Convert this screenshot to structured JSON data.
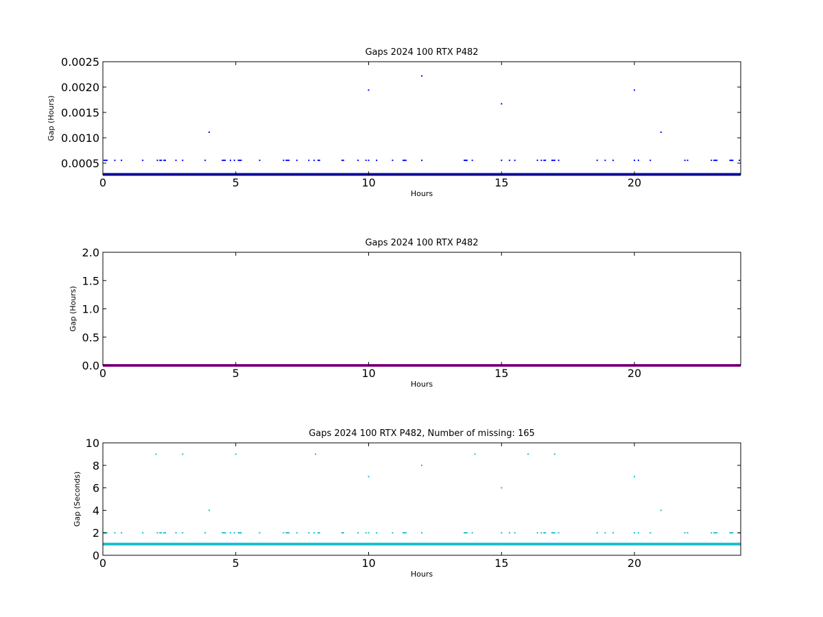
{
  "chart_data": [
    {
      "type": "scatter",
      "title": "Gaps 2024 100 RTX  P482",
      "xlabel": "Hours",
      "ylabel": "Gap (Hours)",
      "xlim": [
        0,
        24
      ],
      "ylim": [
        0.00027,
        0.0025
      ],
      "xticks": [
        0,
        5,
        10,
        15,
        20
      ],
      "yticks": [
        0.0005,
        0.001,
        0.0015,
        0.002,
        0.0025
      ],
      "ytick_labels": [
        "0.0005",
        "0.0010",
        "0.0015",
        "0.0020",
        "0.0025"
      ],
      "grid": false,
      "color": "#0000ff",
      "baseline": 0.000278,
      "points": [
        [
          4.0,
          0.00111
        ],
        [
          10.0,
          0.00194
        ],
        [
          12.0,
          0.00222
        ],
        [
          15.0,
          0.00167
        ],
        [
          20.0,
          0.00194
        ],
        [
          21.0,
          0.00111
        ]
      ],
      "floor_value": 0.000556
    },
    {
      "type": "scatter",
      "title": "Gaps 2024 100 RTX  P482",
      "xlabel": "Hours",
      "ylabel": "Gap (Hours)",
      "xlim": [
        0,
        24
      ],
      "ylim": [
        0,
        2.0
      ],
      "xticks": [
        0,
        5,
        10,
        15,
        20
      ],
      "yticks": [
        0.0,
        0.5,
        1.0,
        1.5,
        2.0
      ],
      "ytick_labels": [
        "0.0",
        "0.5",
        "1.0",
        "1.5",
        "2.0"
      ],
      "grid": false,
      "color": "#9b119b",
      "baseline": 0.0,
      "points": []
    },
    {
      "type": "scatter",
      "title": "Gaps 2024 100 RTX  P482, Number of missing: 165",
      "xlabel": "Hours",
      "ylabel": "Gap (Seconds)",
      "xlim": [
        0,
        24
      ],
      "ylim": [
        0,
        10
      ],
      "xticks": [
        0,
        5,
        10,
        15,
        20
      ],
      "yticks": [
        0,
        2,
        4,
        6,
        8,
        10
      ],
      "ytick_labels": [
        "0",
        "2",
        "4",
        "6",
        "8",
        "10"
      ],
      "grid": false,
      "color": "#17becf",
      "baseline": 1.0,
      "points": [
        [
          2.0,
          9
        ],
        [
          3.0,
          9
        ],
        [
          4.0,
          4
        ],
        [
          5.0,
          9
        ],
        [
          8.0,
          9
        ],
        [
          10.0,
          7
        ],
        [
          12.0,
          8
        ],
        [
          14.0,
          9
        ],
        [
          15.0,
          6
        ],
        [
          16.0,
          9
        ],
        [
          17.0,
          9
        ],
        [
          20.0,
          7
        ],
        [
          21.0,
          4
        ]
      ],
      "floor_value": 2
    }
  ],
  "floor_x": [
    0.05,
    0.1,
    0.15,
    0.45,
    0.7,
    1.5,
    2.05,
    2.15,
    2.2,
    2.3,
    2.35,
    2.75,
    3.0,
    3.85,
    4.5,
    4.55,
    4.6,
    4.8,
    4.95,
    5.1,
    5.15,
    5.2,
    5.9,
    6.8,
    6.9,
    6.95,
    7.0,
    7.3,
    7.75,
    7.95,
    8.1,
    8.15,
    9.0,
    9.05,
    9.6,
    9.9,
    10.0,
    10.3,
    10.9,
    11.3,
    11.35,
    11.4,
    12.0,
    13.6,
    13.65,
    13.7,
    13.9,
    15.0,
    15.3,
    15.5,
    16.35,
    16.5,
    16.6,
    16.65,
    16.9,
    16.95,
    17.0,
    17.15,
    18.6,
    18.9,
    19.2,
    20.0,
    20.15,
    20.6,
    21.9,
    22.0,
    22.9,
    23.0,
    23.05,
    23.1,
    23.6,
    23.65,
    23.7,
    23.95
  ]
}
